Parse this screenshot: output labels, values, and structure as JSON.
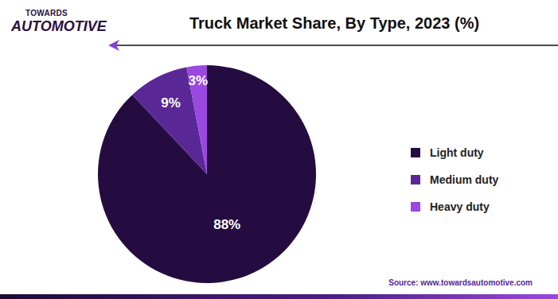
{
  "chart_data": {
    "type": "pie",
    "title": "Truck Market Share, By Type, 2023 (%)",
    "categories": [
      "Light duty",
      "Medium duty",
      "Heavy duty"
    ],
    "values": [
      88,
      9,
      3
    ],
    "value_labels": [
      "88%",
      "9%",
      "3%"
    ],
    "colors": [
      "#250c40",
      "#5a2896",
      "#9a48e0"
    ],
    "data_labels": true,
    "legend": "right",
    "logo": [
      "TOWARDS",
      "AUTOMOTIVE"
    ],
    "source": "Source: www.towardsautomotive.com"
  }
}
